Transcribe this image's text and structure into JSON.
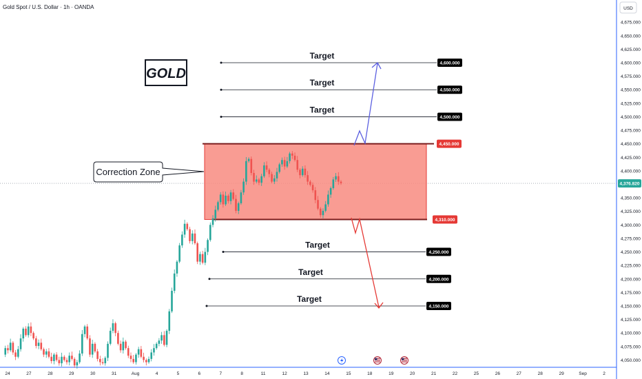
{
  "header": {
    "title": "Gold Spot / U.S. Dollar · 1h · OANDA"
  },
  "currency_button": "USD",
  "logo_text": "GOLD",
  "callout_text": "Correction Zone",
  "current_price": "4,376.820",
  "colors": {
    "up_candle": "#26a69a",
    "down_candle": "#ef5350",
    "zone_fill": "#f88b80",
    "zone_border": "#e53935",
    "up_arrow": "#5b5fe0",
    "down_arrow": "#e53935",
    "badge_black": "#000000",
    "badge_red": "#e53935",
    "current_badge": "#26a69a"
  },
  "icons": [
    "lightning-icon",
    "us-flag-icon",
    "us-flag-icon"
  ],
  "chart_data": {
    "type": "candlestick",
    "title": "Gold Spot / U.S. Dollar · 1h · OANDA",
    "ylim": [
      4040,
      4695
    ],
    "y_ticks": [
      "4,050.000",
      "4,075.000",
      "4,100.000",
      "4,125.000",
      "4,150.000",
      "4,175.000",
      "4,200.000",
      "4,225.000",
      "4,250.000",
      "4,275.000",
      "4,300.000",
      "4,325.000",
      "4,350.000",
      "4,375.000",
      "4,400.000",
      "4,425.000",
      "4,450.000",
      "4,475.000",
      "4,500.000",
      "4,525.000",
      "4,550.000",
      "4,575.000",
      "4,600.000",
      "4,625.000",
      "4,650.000",
      "4,675.000"
    ],
    "x_ticks": [
      "24",
      "27",
      "28",
      "29",
      "30",
      "31",
      "Aug",
      "4",
      "5",
      "6",
      "7",
      "8",
      "11",
      "12",
      "13",
      "14",
      "15",
      "18",
      "19",
      "20",
      "21",
      "22",
      "25",
      "26",
      "27",
      "28",
      "29",
      "Sep",
      "2"
    ],
    "zone": {
      "low": 4310,
      "high": 4450,
      "label": "Correction Zone"
    },
    "zone_levels": [
      {
        "value": 4450,
        "label": "4,450.000"
      },
      {
        "value": 4310,
        "label": "4,310.000"
      }
    ],
    "upper_targets": [
      {
        "value": 4600,
        "label": "4,600.000",
        "text": "Target"
      },
      {
        "value": 4550,
        "label": "4,550.000",
        "text": "Target"
      },
      {
        "value": 4500,
        "label": "4,500.000",
        "text": "Target"
      }
    ],
    "lower_targets": [
      {
        "value": 4250,
        "label": "4,250.000",
        "text": "Target"
      },
      {
        "value": 4200,
        "label": "4,200.000",
        "text": "Target"
      },
      {
        "value": 4150,
        "label": "4,150.000",
        "text": "Target"
      }
    ],
    "current_price": 4376.82,
    "price_path": [
      4060,
      4072,
      4068,
      4082,
      4064,
      4056,
      4070,
      4090,
      4108,
      4096,
      4112,
      4100,
      4090,
      4076,
      4082,
      4070,
      4060,
      4066,
      4056,
      4048,
      4060,
      4050,
      4044,
      4056,
      4050,
      4046,
      4058,
      4052,
      4040,
      4046,
      4062,
      4098,
      4112,
      4090,
      4060,
      4080,
      4066,
      4052,
      4046,
      4044,
      4054,
      4080,
      4104,
      4118,
      4100,
      4080,
      4068,
      4084,
      4072,
      4058,
      4052,
      4046,
      4060,
      4070,
      4056,
      4050,
      4046,
      4052,
      4064,
      4072,
      4080,
      4086,
      4096,
      4078,
      4104,
      4140,
      4178,
      4210,
      4232,
      4262,
      4282,
      4302,
      4292,
      4270,
      4284,
      4266,
      4232,
      4246,
      4230,
      4250,
      4272,
      4300,
      4312,
      4328,
      4342,
      4356,
      4338,
      4354,
      4344,
      4360,
      4348,
      4326,
      4340,
      4360,
      4380,
      4418,
      4422,
      4396,
      4380,
      4384,
      4378,
      4390,
      4410,
      4402,
      4394,
      4380,
      4386,
      4398,
      4412,
      4420,
      4408,
      4418,
      4432,
      4428,
      4420,
      4402,
      4392,
      4404,
      4392,
      4380,
      4374,
      4364,
      4346,
      4330,
      4318,
      4326,
      4338,
      4356,
      4368,
      4384,
      4390,
      4380,
      4377
    ]
  }
}
